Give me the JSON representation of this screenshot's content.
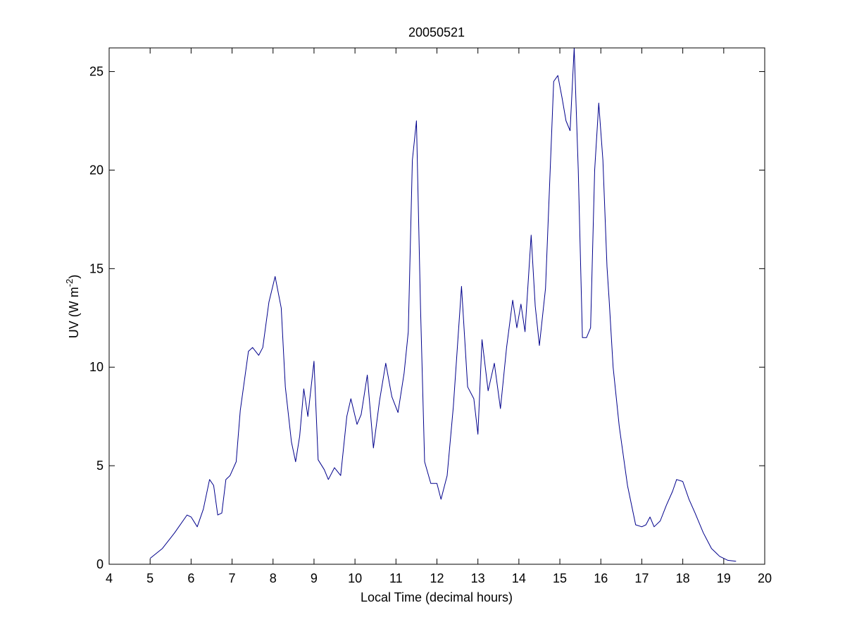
{
  "chart_data": {
    "type": "line",
    "title": "20050521",
    "xlabel": "Local Time (decimal hours)",
    "ylabel": {
      "prefix": "UV (W m",
      "superscript": "-2",
      "suffix": ")"
    },
    "xlim": [
      4,
      20
    ],
    "ylim": [
      0,
      26.2
    ],
    "xticks": [
      4,
      5,
      6,
      7,
      8,
      9,
      10,
      11,
      12,
      13,
      14,
      15,
      16,
      17,
      18,
      19,
      20
    ],
    "yticks": [
      0,
      5,
      10,
      15,
      20,
      25
    ],
    "grid": false,
    "legend": "none",
    "line_color": "#00008B",
    "series": [
      {
        "x": [
          5.0,
          5.3,
          5.6,
          5.9,
          6.0,
          6.15,
          6.3,
          6.45,
          6.55,
          6.65,
          6.75,
          6.85,
          6.95,
          7.1,
          7.2,
          7.4,
          7.5,
          7.65,
          7.75,
          7.9,
          8.05,
          8.2,
          8.3,
          8.45,
          8.55,
          8.65,
          8.75,
          8.85,
          9.0,
          9.1,
          9.25,
          9.35,
          9.5,
          9.65,
          9.8,
          9.9,
          10.05,
          10.15,
          10.3,
          10.45,
          10.6,
          10.75,
          10.9,
          11.05,
          11.2,
          11.3,
          11.4,
          11.5,
          11.6,
          11.7,
          11.85,
          12.0,
          12.1,
          12.25,
          12.4,
          12.6,
          12.75,
          12.9,
          13.0,
          13.1,
          13.25,
          13.4,
          13.55,
          13.7,
          13.85,
          13.95,
          14.05,
          14.15,
          14.3,
          14.4,
          14.5,
          14.65,
          14.85,
          14.95,
          15.05,
          15.15,
          15.25,
          15.35,
          15.45,
          15.55,
          15.65,
          15.75,
          15.85,
          15.95,
          16.05,
          16.15,
          16.2,
          16.3,
          16.45,
          16.65,
          16.85,
          17.0,
          17.1,
          17.2,
          17.3,
          17.45,
          17.6,
          17.75,
          17.85,
          18.0,
          18.15,
          18.3,
          18.5,
          18.7,
          18.9,
          19.1,
          19.3
        ],
        "y": [
          0.3,
          0.8,
          1.6,
          2.5,
          2.4,
          1.9,
          2.8,
          4.3,
          4.0,
          2.5,
          2.6,
          4.3,
          4.5,
          5.2,
          7.8,
          10.8,
          11.0,
          10.6,
          11.0,
          13.3,
          14.6,
          13.0,
          9.0,
          6.2,
          5.2,
          6.5,
          8.9,
          7.5,
          10.3,
          5.3,
          4.8,
          4.3,
          4.9,
          4.5,
          7.5,
          8.4,
          7.1,
          7.6,
          9.6,
          5.9,
          8.3,
          10.2,
          8.5,
          7.7,
          9.7,
          11.8,
          20.5,
          22.5,
          13.0,
          5.2,
          4.1,
          4.1,
          3.3,
          4.5,
          8.0,
          14.1,
          9.0,
          8.4,
          6.6,
          11.4,
          8.8,
          10.2,
          7.9,
          11.0,
          13.4,
          12.0,
          13.2,
          11.8,
          16.7,
          13.1,
          11.1,
          14.0,
          24.5,
          24.8,
          23.7,
          22.5,
          22.0,
          26.2,
          20.0,
          11.5,
          11.5,
          12.0,
          20.0,
          23.4,
          20.5,
          15.1,
          13.5,
          10.0,
          7.0,
          4.0,
          2.0,
          1.9,
          2.0,
          2.4,
          1.9,
          2.2,
          3.0,
          3.7,
          4.3,
          4.2,
          3.3,
          2.6,
          1.6,
          0.8,
          0.4,
          0.2,
          0.15
        ]
      }
    ]
  }
}
